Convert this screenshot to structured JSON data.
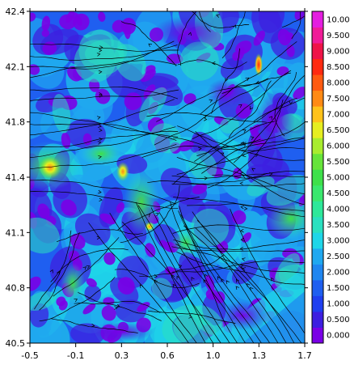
{
  "chart_data": {
    "type": "heatmap",
    "title": "",
    "xlabel": "",
    "ylabel": "",
    "xlim": [
      -0.5,
      1.7
    ],
    "ylim": [
      40.5,
      42.4
    ],
    "x_ticks": [
      "-0.5",
      "-0.1",
      "0.3",
      "0.6",
      "1.0",
      "1.3",
      "1.7"
    ],
    "y_ticks": [
      "40.5",
      "40.8",
      "41.1",
      "41.4",
      "41.8",
      "42.1",
      "42.4"
    ],
    "overlay": "streamlines",
    "colorbar": {
      "placement": "right",
      "levels": [
        "0.000",
        "0.500",
        "1.000",
        "1.500",
        "2.000",
        "2.500",
        "3.000",
        "3.500",
        "4.000",
        "4.500",
        "5.000",
        "5.500",
        "6.000",
        "6.500",
        "7.000",
        "7.500",
        "8.000",
        "8.500",
        "9.000",
        "9.500",
        "10.00"
      ],
      "colors": [
        "#7a00e6",
        "#3d1fe0",
        "#1f3ff0",
        "#1f5ff0",
        "#1f86f0",
        "#20a8f0",
        "#1fd6e8",
        "#2ae0c0",
        "#2ee89a",
        "#3ae86e",
        "#3ee04a",
        "#66e43a",
        "#a8ec2e",
        "#e6ee20",
        "#ffc21a",
        "#ff8a14",
        "#ff5a10",
        "#ff2a10",
        "#ee1448",
        "#f01c98",
        "#e41ee0"
      ]
    }
  }
}
